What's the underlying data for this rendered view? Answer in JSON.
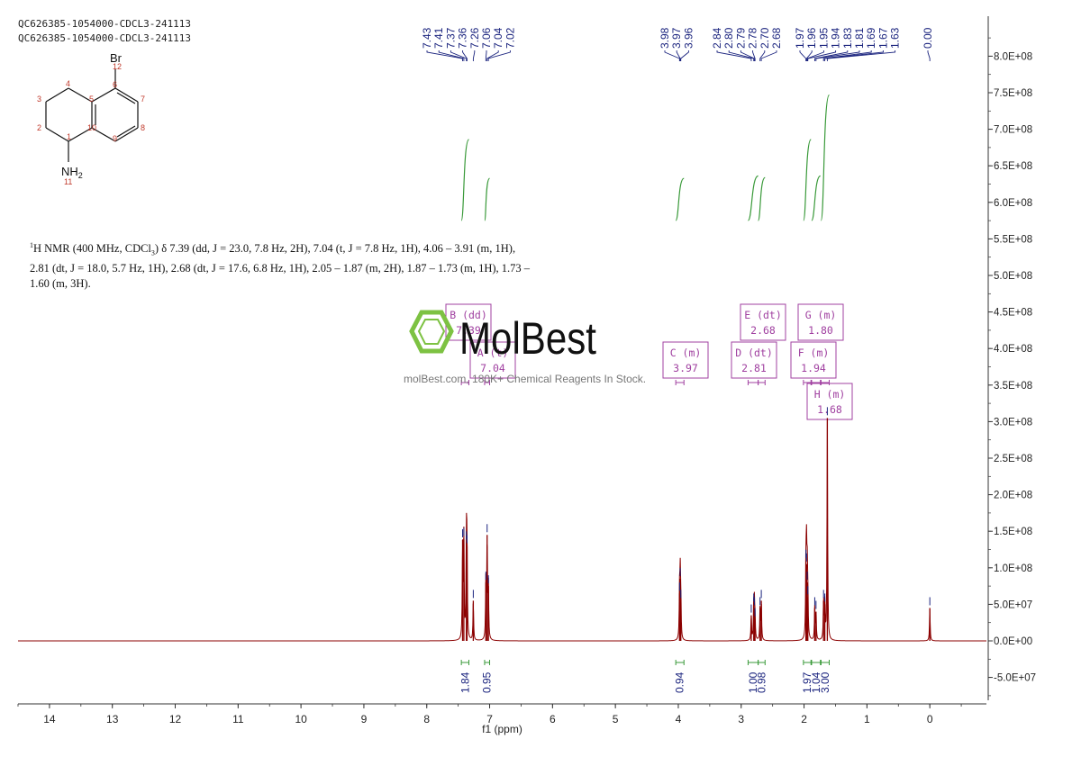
{
  "header": {
    "line1": "QC626385-1054000-CDCL3-241113",
    "line2": "QC626385-1054000-CDCL3-241113"
  },
  "structure": {
    "substituent": "Br",
    "amine": "NH",
    "amine_subscript": "2",
    "atom_numbers": [
      "1",
      "2",
      "3",
      "4",
      "5",
      "6",
      "7",
      "8",
      "9",
      "10",
      "11",
      "12"
    ]
  },
  "nmr_description": {
    "superscript": "1",
    "text": "H NMR (400 MHz, CDCl",
    "subscript": "3",
    "rest": ") δ 7.39 (dd, J = 23.0, 7.8 Hz, 2H), 7.04 (t, J = 7.8 Hz, 1H), 4.06 – 3.91 (m, 1H), 2.81 (dt, J = 18.0, 5.7 Hz, 1H), 2.68 (dt, J = 17.6, 6.8 Hz, 1H), 2.05 – 1.87 (m, 2H), 1.87 – 1.73 (m, 1H), 1.73 – 1.60 (m, 3H)."
  },
  "watermark": {
    "brand": "MolBest",
    "tagline": "molBest.com, 180K+ Chemical Reagents In Stock."
  },
  "colors": {
    "spectrum": "#8b0000",
    "peak_labels": "#1a237e",
    "integral": "#3a9a3a",
    "multiplet_box": "#a040a0",
    "watermark_green": "#7dc242"
  },
  "chart_data": {
    "type": "line",
    "xlabel": "f1 (ppm)",
    "ylabel": "",
    "xlim": [
      14.5,
      -0.9
    ],
    "x_reversed": true,
    "ylim": [
      -80000000.0,
      850000000.0
    ],
    "x_ticks": [
      14,
      13,
      12,
      11,
      10,
      9,
      8,
      7,
      6,
      5,
      4,
      3,
      2,
      1,
      0
    ],
    "y_ticks": [
      "-5.0E+07",
      "0.0E+00",
      "5.0E+07",
      "1.0E+08",
      "1.5E+08",
      "2.0E+08",
      "2.5E+08",
      "3.0E+08",
      "3.5E+08",
      "4.0E+08",
      "4.5E+08",
      "5.0E+08",
      "5.5E+08",
      "6.0E+08",
      "6.5E+08",
      "7.0E+08",
      "7.5E+08",
      "8.0E+08"
    ],
    "y_tick_values": [
      -50000000.0,
      0,
      50000000.0,
      100000000.0,
      150000000.0,
      200000000.0,
      250000000.0,
      300000000.0,
      350000000.0,
      400000000.0,
      450000000.0,
      500000000.0,
      550000000.0,
      600000000.0,
      650000000.0,
      700000000.0,
      750000000.0,
      800000000.0
    ],
    "peaks": [
      {
        "ppm": 7.43,
        "height": 138000000.0
      },
      {
        "ppm": 7.41,
        "height": 140000000.0
      },
      {
        "ppm": 7.37,
        "height": 135000000.0
      },
      {
        "ppm": 7.36,
        "height": 130000000.0
      },
      {
        "ppm": 7.26,
        "height": 55000000.0
      },
      {
        "ppm": 7.06,
        "height": 80000000.0
      },
      {
        "ppm": 7.04,
        "height": 145000000.0
      },
      {
        "ppm": 7.02,
        "height": 75000000.0
      },
      {
        "ppm": 3.98,
        "height": 65000000.0
      },
      {
        "ppm": 3.97,
        "height": 85000000.0
      },
      {
        "ppm": 3.96,
        "height": 55000000.0
      },
      {
        "ppm": 2.84,
        "height": 35000000.0
      },
      {
        "ppm": 2.8,
        "height": 50000000.0
      },
      {
        "ppm": 2.79,
        "height": 45000000.0
      },
      {
        "ppm": 2.78,
        "height": 30000000.0
      },
      {
        "ppm": 2.7,
        "height": 45000000.0
      },
      {
        "ppm": 2.68,
        "height": 55000000.0
      },
      {
        "ppm": 1.97,
        "height": 110000000.0
      },
      {
        "ppm": 1.96,
        "height": 105000000.0
      },
      {
        "ppm": 1.95,
        "height": 80000000.0
      },
      {
        "ppm": 1.94,
        "height": 60000000.0
      },
      {
        "ppm": 1.83,
        "height": 45000000.0
      },
      {
        "ppm": 1.81,
        "height": 40000000.0
      },
      {
        "ppm": 1.69,
        "height": 55000000.0
      },
      {
        "ppm": 1.67,
        "height": 50000000.0
      },
      {
        "ppm": 1.63,
        "height": 305000000.0
      },
      {
        "ppm": 0.0,
        "height": 45000000.0
      }
    ],
    "peak_labels": [
      "7.43",
      "7.41",
      "7.37",
      "7.36",
      "7.26",
      "7.06",
      "7.04",
      "7.02",
      "3.98",
      "3.97",
      "3.96",
      "2.84",
      "2.80",
      "2.79",
      "2.78",
      "2.70",
      "2.68",
      "1.97",
      "1.96",
      "1.95",
      "1.94",
      "1.83",
      "1.81",
      "1.69",
      "1.67",
      "1.63",
      "0.00"
    ],
    "multiplets": [
      {
        "letter": "B",
        "type": "dd",
        "shift": "7.39",
        "range": [
          7.45,
          7.33
        ]
      },
      {
        "letter": "A",
        "type": "t",
        "shift": "7.04",
        "range": [
          7.08,
          7.0
        ]
      },
      {
        "letter": "C",
        "type": "m",
        "shift": "3.97",
        "range": [
          4.04,
          3.91
        ]
      },
      {
        "letter": "D",
        "type": "dt",
        "shift": "2.81",
        "range": [
          2.89,
          2.73
        ]
      },
      {
        "letter": "E",
        "type": "dt",
        "shift": "2.68",
        "range": [
          2.73,
          2.62
        ]
      },
      {
        "letter": "F",
        "type": "m",
        "shift": "1.94",
        "range": [
          2.01,
          1.89
        ]
      },
      {
        "letter": "G",
        "type": "m",
        "shift": "1.80",
        "range": [
          1.88,
          1.74
        ]
      },
      {
        "letter": "H",
        "type": "m",
        "shift": "1.68",
        "range": [
          1.73,
          1.6
        ]
      }
    ],
    "integrals": [
      {
        "value": "1.84",
        "range": [
          7.45,
          7.33
        ],
        "rise": 1.0
      },
      {
        "value": "0.95",
        "range": [
          7.08,
          7.0
        ],
        "rise": 0.52
      },
      {
        "value": "0.94",
        "range": [
          4.04,
          3.91
        ],
        "rise": 0.52
      },
      {
        "value": "1.00",
        "range": [
          2.89,
          2.73
        ],
        "rise": 0.55
      },
      {
        "value": "0.98",
        "range": [
          2.73,
          2.62
        ],
        "rise": 0.53
      },
      {
        "value": "1.97",
        "range": [
          2.01,
          1.89
        ],
        "rise": 1.0
      },
      {
        "value": "1.04",
        "range": [
          1.88,
          1.74
        ],
        "rise": 0.55
      },
      {
        "value": "3.00",
        "range": [
          1.73,
          1.6
        ],
        "rise": 1.55
      }
    ]
  }
}
